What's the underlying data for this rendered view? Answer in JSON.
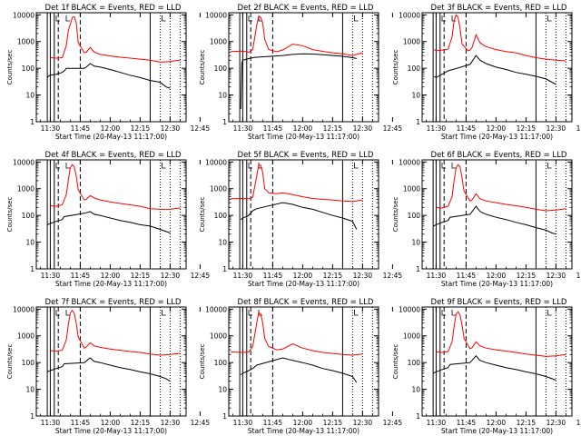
{
  "chart_data": [
    {
      "type": "line",
      "title": "Det 1f BLACK = Events, RED = LLD",
      "xlabel": "Start Time (20-May-13 11:17:00)",
      "ylabel": "Counts/sec",
      "y_scale": "log",
      "ylim": [
        1,
        12000
      ],
      "y_ticks": [
        1,
        10,
        100,
        1000,
        10000
      ],
      "x_ticks": [
        "11:30",
        "11:45",
        "12:00",
        "12:15",
        "12:30",
        "12:45"
      ],
      "series": [
        {
          "color": "#ff0000",
          "x": [
            0,
            3,
            6,
            8,
            9,
            11,
            12,
            13,
            14,
            17,
            18,
            20,
            22,
            25,
            30,
            35,
            40,
            45,
            50,
            55,
            60,
            62,
            65
          ],
          "values": [
            250,
            240,
            250,
            700,
            2500,
            8000,
            8500,
            5000,
            900,
            380,
            400,
            600,
            400,
            330,
            290,
            260,
            240,
            220,
            200,
            170,
            180,
            190,
            200
          ]
        },
        {
          "color": "#000000",
          "x": [
            -1.5,
            -1,
            0,
            3,
            6,
            7,
            8,
            17,
            18,
            20,
            22,
            25,
            30,
            35,
            40,
            45,
            50,
            55,
            58,
            60
          ],
          "values": [
            45,
            50,
            55,
            60,
            70,
            80,
            100,
            100,
            110,
            150,
            120,
            110,
            90,
            70,
            55,
            45,
            35,
            30,
            20,
            18
          ]
        }
      ]
    },
    {
      "type": "line",
      "title": "Det 2f BLACK = Events, RED = LLD",
      "xlabel": "Start Time (20-May-13 11:17:00)",
      "ylabel": "Counts/sec",
      "y_scale": "log",
      "ylim": [
        1,
        12000
      ],
      "y_ticks": [
        1,
        10,
        100,
        1000,
        10000
      ],
      "x_ticks": [
        "11:30",
        "11:45",
        "12:00",
        "12:15",
        "12:30",
        "12:45"
      ],
      "series": [
        {
          "color": "#ff0000",
          "x": [
            -6,
            0,
            3,
            5,
            7,
            8,
            9,
            10,
            11,
            13,
            17,
            20,
            25,
            30,
            35,
            40,
            45,
            50,
            55,
            60
          ],
          "values": [
            420,
            440,
            400,
            500,
            4000,
            9000,
            8000,
            5000,
            1200,
            500,
            420,
            480,
            800,
            700,
            500,
            430,
            380,
            350,
            300,
            380
          ]
        },
        {
          "color": "#000000",
          "x": [
            -1,
            -0.5,
            0,
            3,
            5,
            7,
            20,
            25,
            30,
            35,
            40,
            45,
            50,
            55,
            57
          ],
          "values": [
            3,
            150,
            200,
            230,
            250,
            260,
            300,
            330,
            350,
            340,
            320,
            300,
            280,
            250,
            230
          ]
        }
      ]
    },
    {
      "type": "line",
      "title": "Det 3f BLACK = Events, RED = LLD",
      "xlabel": "Start Time (20-May-13 11:17:00)",
      "ylabel": "Counts/sec",
      "y_scale": "log",
      "ylim": [
        1,
        12000
      ],
      "y_ticks": [
        1,
        10,
        100,
        1000,
        10000
      ],
      "x_ticks": [
        "11:30",
        "11:45",
        "12:00",
        "12:15",
        "12:30",
        "12:45"
      ],
      "series": [
        {
          "color": "#ff0000",
          "x": [
            -1,
            0,
            3,
            6,
            8,
            9,
            10,
            11,
            12,
            13,
            16,
            17,
            18,
            20,
            22,
            25,
            30,
            35,
            40,
            45,
            50,
            55,
            60,
            65
          ],
          "values": [
            500,
            450,
            480,
            520,
            1500,
            6000,
            10000,
            8000,
            3000,
            800,
            450,
            480,
            600,
            1800,
            900,
            650,
            500,
            420,
            380,
            300,
            250,
            220,
            200,
            190
          ]
        },
        {
          "color": "#000000",
          "x": [
            -1,
            0,
            3,
            6,
            17,
            20,
            22,
            25,
            30,
            35,
            40,
            45,
            50,
            55,
            58,
            60
          ],
          "values": [
            50,
            45,
            60,
            80,
            140,
            300,
            200,
            150,
            110,
            90,
            70,
            60,
            50,
            40,
            30,
            25
          ]
        }
      ]
    },
    {
      "type": "line",
      "title": "Det 4f BLACK = Events, RED = LLD",
      "xlabel": "Start Time (20-May-13 11:17:00)",
      "ylabel": "Counts/sec",
      "y_scale": "log",
      "ylim": [
        1,
        12000
      ],
      "y_ticks": [
        1,
        10,
        100,
        1000,
        10000
      ],
      "x_ticks": [
        "11:30",
        "11:45",
        "12:00",
        "12:15",
        "12:30",
        "12:45"
      ],
      "series": [
        {
          "color": "#ff0000",
          "x": [
            0,
            3,
            6,
            8,
            9,
            10,
            11,
            12,
            13,
            14,
            17,
            18,
            20,
            22,
            25,
            30,
            35,
            40,
            45,
            50,
            55,
            60,
            65
          ],
          "values": [
            230,
            220,
            250,
            600,
            2000,
            6000,
            8000,
            6500,
            3000,
            900,
            380,
            400,
            550,
            450,
            380,
            320,
            280,
            250,
            220,
            180,
            170,
            170,
            190
          ]
        },
        {
          "color": "#000000",
          "x": [
            -1.5,
            0,
            3,
            6,
            7,
            17,
            20,
            22,
            25,
            30,
            35,
            40,
            45,
            50,
            55,
            58,
            60
          ],
          "values": [
            45,
            50,
            60,
            70,
            90,
            120,
            140,
            110,
            100,
            80,
            65,
            55,
            45,
            40,
            30,
            25,
            22
          ]
        }
      ]
    },
    {
      "type": "line",
      "title": "Det 5f BLACK = Events, RED = LLD",
      "xlabel": "Start Time (20-May-13 11:17:00)",
      "ylabel": "Counts/sec",
      "y_scale": "log",
      "ylim": [
        1,
        12000
      ],
      "y_ticks": [
        1,
        10,
        100,
        1000,
        10000
      ],
      "x_ticks": [
        "11:30",
        "11:45",
        "12:00",
        "12:15",
        "12:30",
        "12:45"
      ],
      "series": [
        {
          "color": "#ff0000",
          "x": [
            -6,
            0,
            3,
            5,
            7,
            8,
            9,
            10,
            11,
            13,
            17,
            20,
            25,
            30,
            35,
            40,
            45,
            50,
            55,
            60
          ],
          "values": [
            420,
            430,
            420,
            480,
            3000,
            8000,
            7500,
            4000,
            1000,
            700,
            650,
            700,
            600,
            500,
            430,
            400,
            380,
            350,
            330,
            380
          ]
        },
        {
          "color": "#000000",
          "x": [
            -1,
            0,
            3,
            5,
            7,
            20,
            25,
            30,
            35,
            40,
            45,
            50,
            55,
            57
          ],
          "values": [
            70,
            80,
            100,
            150,
            180,
            300,
            260,
            200,
            170,
            130,
            100,
            80,
            60,
            30
          ]
        }
      ]
    },
    {
      "type": "line",
      "title": "Det 6f BLACK = Events, RED = LLD",
      "xlabel": "Start Time (20-May-13 11:17:00)",
      "ylabel": "Counts/sec",
      "y_scale": "log",
      "ylim": [
        1,
        12000
      ],
      "y_ticks": [
        1,
        10,
        100,
        1000,
        10000
      ],
      "x_ticks": [
        "11:30",
        "11:45",
        "12:00",
        "12:15",
        "12:30",
        "12:45"
      ],
      "series": [
        {
          "color": "#ff0000",
          "x": [
            0,
            3,
            6,
            8,
            9,
            10,
            11,
            12,
            13,
            14,
            17,
            18,
            20,
            22,
            25,
            30,
            35,
            40,
            45,
            50,
            55,
            60,
            65
          ],
          "values": [
            200,
            190,
            220,
            500,
            2000,
            6000,
            8000,
            6500,
            2500,
            800,
            350,
            380,
            650,
            420,
            350,
            300,
            260,
            230,
            200,
            170,
            150,
            160,
            180
          ]
        },
        {
          "color": "#000000",
          "x": [
            -1.5,
            0,
            3,
            6,
            7,
            17,
            20,
            22,
            25,
            30,
            35,
            40,
            45,
            50,
            55,
            58,
            60
          ],
          "values": [
            40,
            45,
            55,
            65,
            85,
            110,
            220,
            140,
            110,
            85,
            70,
            55,
            45,
            35,
            28,
            22,
            20
          ]
        }
      ]
    },
    {
      "type": "line",
      "title": "Det 7f BLACK = Events, RED = LLD",
      "xlabel": "Start Time (20-May-13 11:17:00)",
      "ylabel": "Counts/sec",
      "y_scale": "log",
      "ylim": [
        1,
        12000
      ],
      "y_ticks": [
        1,
        10,
        100,
        1000,
        10000
      ],
      "x_ticks": [
        "11:30",
        "11:45",
        "12:00",
        "12:15",
        "12:30",
        "12:45"
      ],
      "series": [
        {
          "color": "#ff0000",
          "x": [
            0,
            3,
            6,
            8,
            9,
            10,
            11,
            12,
            13,
            14,
            17,
            18,
            20,
            22,
            25,
            30,
            35,
            40,
            45,
            50,
            55,
            60,
            65
          ],
          "values": [
            280,
            270,
            290,
            700,
            2500,
            7000,
            9000,
            7000,
            3000,
            900,
            350,
            380,
            550,
            420,
            370,
            320,
            290,
            260,
            240,
            210,
            190,
            200,
            220
          ]
        },
        {
          "color": "#000000",
          "x": [
            -1.5,
            0,
            3,
            6,
            7,
            17,
            20,
            22,
            25,
            30,
            35,
            40,
            45,
            50,
            55,
            58,
            60
          ],
          "values": [
            45,
            50,
            60,
            70,
            90,
            100,
            150,
            110,
            100,
            80,
            65,
            55,
            45,
            38,
            30,
            25,
            20
          ]
        }
      ]
    },
    {
      "type": "line",
      "title": "Det 8f BLACK = Events, RED = LLD",
      "xlabel": "Start Time (20-May-13 11:17:00)",
      "ylabel": "Counts/sec",
      "y_scale": "log",
      "ylim": [
        1,
        12000
      ],
      "y_ticks": [
        1,
        10,
        100,
        1000,
        10000
      ],
      "x_ticks": [
        "11:30",
        "11:45",
        "12:00",
        "12:15",
        "12:30",
        "12:45"
      ],
      "series": [
        {
          "color": "#ff0000",
          "x": [
            -6,
            0,
            3,
            5,
            7,
            8,
            9,
            10,
            11,
            13,
            17,
            20,
            25,
            30,
            35,
            40,
            45,
            50,
            55,
            60
          ],
          "values": [
            250,
            240,
            250,
            400,
            3000,
            7500,
            6500,
            3000,
            800,
            400,
            300,
            320,
            500,
            350,
            280,
            240,
            220,
            200,
            190,
            210
          ]
        },
        {
          "color": "#000000",
          "x": [
            -1,
            0,
            3,
            5,
            7,
            20,
            25,
            30,
            35,
            40,
            45,
            50,
            55,
            57
          ],
          "values": [
            35,
            40,
            50,
            60,
            80,
            150,
            120,
            100,
            80,
            60,
            50,
            40,
            30,
            18
          ]
        }
      ]
    },
    {
      "type": "line",
      "title": "Det 9f BLACK = Events, RED = LLD",
      "xlabel": "Start Time (20-May-13 11:17:00)",
      "ylabel": "Counts/sec",
      "y_scale": "log",
      "ylim": [
        1,
        12000
      ],
      "y_ticks": [
        1,
        10,
        100,
        1000,
        10000
      ],
      "x_ticks": [
        "11:30",
        "11:45",
        "12:00",
        "12:15",
        "12:30",
        "12:45"
      ],
      "series": [
        {
          "color": "#ff0000",
          "x": [
            0,
            3,
            6,
            8,
            9,
            10,
            11,
            12,
            13,
            14,
            17,
            18,
            20,
            22,
            25,
            30,
            35,
            40,
            45,
            50,
            55,
            60,
            65
          ],
          "values": [
            250,
            240,
            260,
            600,
            2200,
            6500,
            8000,
            6000,
            2500,
            800,
            330,
            360,
            600,
            420,
            350,
            300,
            270,
            240,
            210,
            190,
            170,
            180,
            200
          ]
        },
        {
          "color": "#000000",
          "x": [
            -1.5,
            0,
            3,
            6,
            7,
            17,
            20,
            22,
            25,
            30,
            35,
            40,
            45,
            50,
            55,
            58,
            60
          ],
          "values": [
            40,
            45,
            55,
            65,
            85,
            100,
            180,
            120,
            100,
            80,
            65,
            55,
            45,
            38,
            30,
            25,
            22
          ]
        }
      ]
    }
  ]
}
